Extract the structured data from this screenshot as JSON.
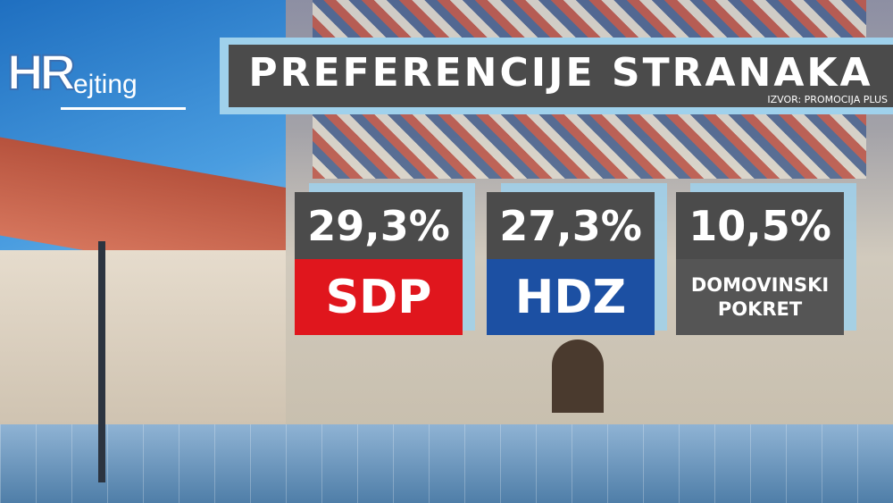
{
  "logo": {
    "prefix": "HR",
    "suffix": "ejting"
  },
  "header": {
    "title": "PREFERENCIJE STRANAKA",
    "source": "IZVOR: PROMOCIJA PLUS"
  },
  "cards": [
    {
      "value": "29,3%",
      "party": "SDP"
    },
    {
      "value": "27,3%",
      "party": "HDZ"
    },
    {
      "value": "10,5%",
      "party": "DOMOVINSKI POKRET"
    }
  ]
}
